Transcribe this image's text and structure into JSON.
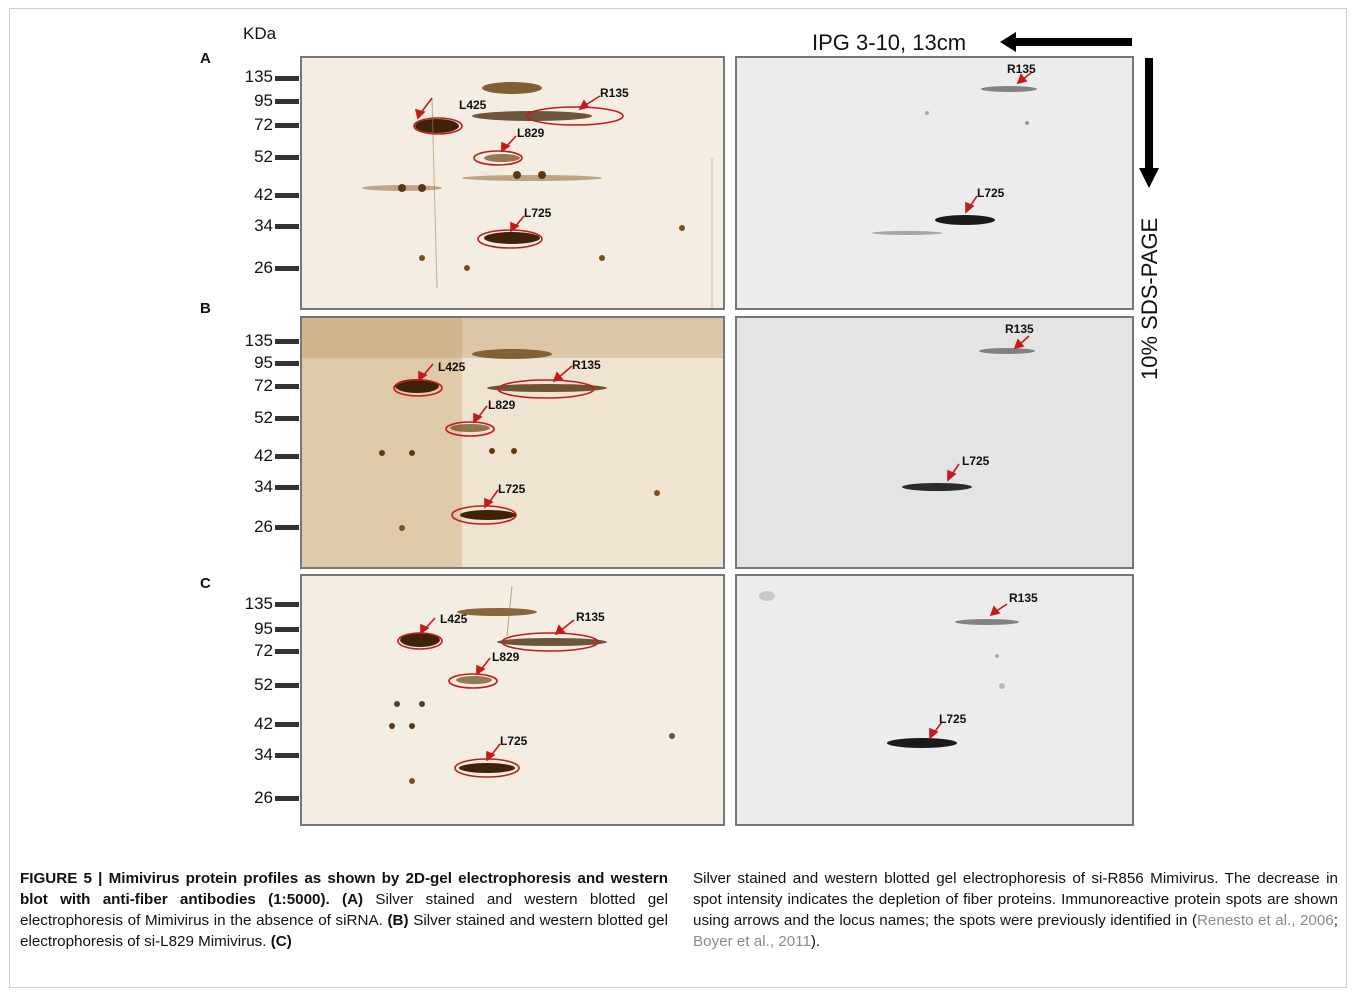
{
  "axis": {
    "unit_label": "KDa",
    "mw_ticks": [
      "135",
      "95",
      "72",
      "52",
      "42",
      "34",
      "26"
    ],
    "ipg_label": "IPG 3-10, 13cm",
    "sds_label": "10% SDS-PAGE"
  },
  "rows": [
    {
      "label": "A",
      "silver_spots": [
        "L425",
        "R135",
        "L829",
        "L725"
      ],
      "western_spots": [
        "R135",
        "L725"
      ]
    },
    {
      "label": "B",
      "silver_spots": [
        "L425",
        "R135",
        "L829",
        "L725"
      ],
      "western_spots": [
        "R135",
        "L725"
      ]
    },
    {
      "label": "C",
      "silver_spots": [
        "L425",
        "R135",
        "L829",
        "L725"
      ],
      "western_spots": [
        "R135",
        "L725"
      ]
    }
  ],
  "caption": {
    "fig": "FIGURE 5 | Mimivirus protein profiles as shown by 2D-gel electrophoresis and western blot with anti-fiber antibodies (1:5000).",
    "A_tag": "(A)",
    "A_text": " Silver stained and western blotted gel electrophoresis of Mimivirus in the absence of siRNA. ",
    "B_tag": "(B)",
    "B_text": " Silver stained and western blotted gel electrophoresis of si-L829 Mimivirus. ",
    "C_tag": "(C)",
    "C_text": " Silver stained and western blotted gel electrophoresis of si-R856 Mimivirus. The decrease in spot intensity indicates the depletion of fiber proteins. Immunoreactive protein spots are shown using arrows and the locus names; the spots were previously identified in (",
    "cite1": "Renesto et al., 2006",
    "sep": "; ",
    "cite2": "Boyer et al., 2011",
    "end": ")."
  },
  "colors": {
    "annotation_red": "#c41a1a",
    "silver_brown": "#5a3a14",
    "western_dark": "#1a1a1a"
  }
}
